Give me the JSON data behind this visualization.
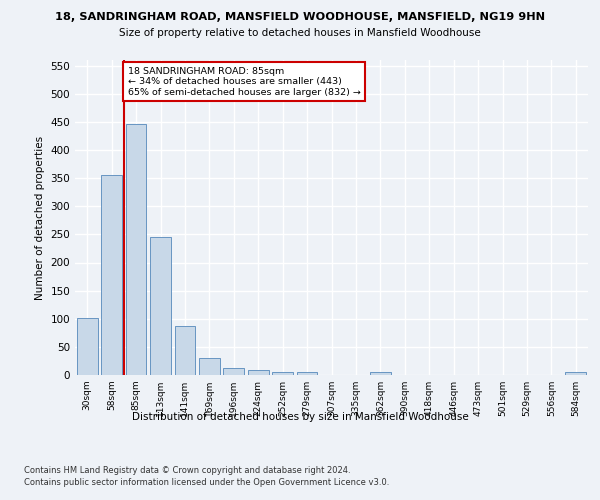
{
  "title_line1": "18, SANDRINGHAM ROAD, MANSFIELD WOODHOUSE, MANSFIELD, NG19 9HN",
  "title_line2": "Size of property relative to detached houses in Mansfield Woodhouse",
  "xlabel": "Distribution of detached houses by size in Mansfield Woodhouse",
  "ylabel": "Number of detached properties",
  "footer_line1": "Contains HM Land Registry data © Crown copyright and database right 2024.",
  "footer_line2": "Contains public sector information licensed under the Open Government Licence v3.0.",
  "annotation_line1": "18 SANDRINGHAM ROAD: 85sqm",
  "annotation_line2": "← 34% of detached houses are smaller (443)",
  "annotation_line3": "65% of semi-detached houses are larger (832) →",
  "bar_color": "#c8d8e8",
  "bar_edge_color": "#5588bb",
  "vline_color": "#cc0000",
  "categories": [
    "30sqm",
    "58sqm",
    "85sqm",
    "113sqm",
    "141sqm",
    "169sqm",
    "196sqm",
    "224sqm",
    "252sqm",
    "279sqm",
    "307sqm",
    "335sqm",
    "362sqm",
    "390sqm",
    "418sqm",
    "446sqm",
    "473sqm",
    "501sqm",
    "529sqm",
    "556sqm",
    "584sqm"
  ],
  "values": [
    102,
    355,
    447,
    245,
    88,
    30,
    13,
    9,
    5,
    5,
    0,
    0,
    6,
    0,
    0,
    0,
    0,
    0,
    0,
    0,
    5
  ],
  "ylim": [
    0,
    560
  ],
  "yticks": [
    0,
    50,
    100,
    150,
    200,
    250,
    300,
    350,
    400,
    450,
    500,
    550
  ],
  "bg_color": "#eef2f7",
  "grid_color": "#ffffff"
}
